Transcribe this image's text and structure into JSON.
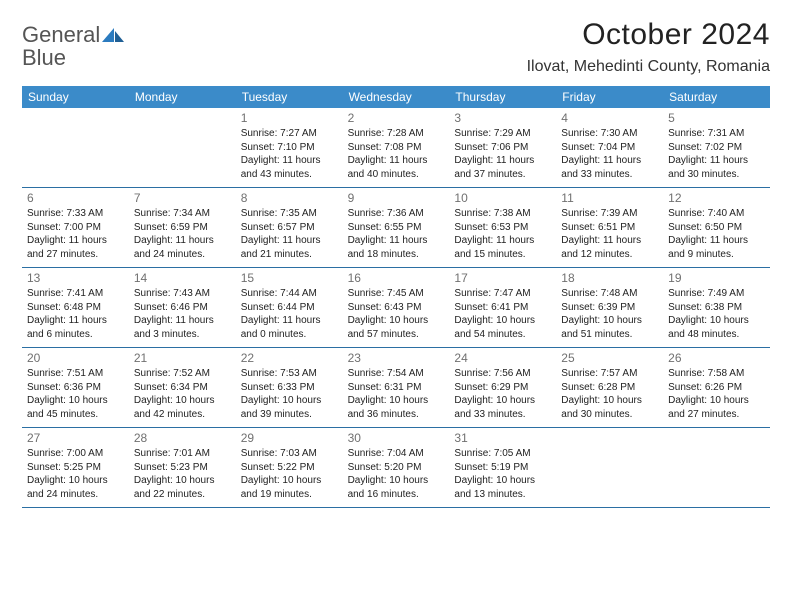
{
  "brand": {
    "word1": "General",
    "word2": "Blue"
  },
  "title": "October 2024",
  "location": "Ilovat, Mehedinti County, Romania",
  "colors": {
    "header_bg": "#3b8bc9",
    "header_text": "#ffffff",
    "row_border": "#2b6fa3",
    "daynum": "#707070",
    "body_text": "#222222",
    "logo_gray": "#555555",
    "logo_blue": "#2b7bbf"
  },
  "dayNames": [
    "Sunday",
    "Monday",
    "Tuesday",
    "Wednesday",
    "Thursday",
    "Friday",
    "Saturday"
  ],
  "weeks": [
    [
      null,
      null,
      {
        "n": "1",
        "sr": "7:27 AM",
        "ss": "7:10 PM",
        "dh": "11",
        "dm": "43"
      },
      {
        "n": "2",
        "sr": "7:28 AM",
        "ss": "7:08 PM",
        "dh": "11",
        "dm": "40"
      },
      {
        "n": "3",
        "sr": "7:29 AM",
        "ss": "7:06 PM",
        "dh": "11",
        "dm": "37"
      },
      {
        "n": "4",
        "sr": "7:30 AM",
        "ss": "7:04 PM",
        "dh": "11",
        "dm": "33"
      },
      {
        "n": "5",
        "sr": "7:31 AM",
        "ss": "7:02 PM",
        "dh": "11",
        "dm": "30"
      }
    ],
    [
      {
        "n": "6",
        "sr": "7:33 AM",
        "ss": "7:00 PM",
        "dh": "11",
        "dm": "27"
      },
      {
        "n": "7",
        "sr": "7:34 AM",
        "ss": "6:59 PM",
        "dh": "11",
        "dm": "24"
      },
      {
        "n": "8",
        "sr": "7:35 AM",
        "ss": "6:57 PM",
        "dh": "11",
        "dm": "21"
      },
      {
        "n": "9",
        "sr": "7:36 AM",
        "ss": "6:55 PM",
        "dh": "11",
        "dm": "18"
      },
      {
        "n": "10",
        "sr": "7:38 AM",
        "ss": "6:53 PM",
        "dh": "11",
        "dm": "15"
      },
      {
        "n": "11",
        "sr": "7:39 AM",
        "ss": "6:51 PM",
        "dh": "11",
        "dm": "12"
      },
      {
        "n": "12",
        "sr": "7:40 AM",
        "ss": "6:50 PM",
        "dh": "11",
        "dm": "9"
      }
    ],
    [
      {
        "n": "13",
        "sr": "7:41 AM",
        "ss": "6:48 PM",
        "dh": "11",
        "dm": "6"
      },
      {
        "n": "14",
        "sr": "7:43 AM",
        "ss": "6:46 PM",
        "dh": "11",
        "dm": "3"
      },
      {
        "n": "15",
        "sr": "7:44 AM",
        "ss": "6:44 PM",
        "dh": "11",
        "dm": "0"
      },
      {
        "n": "16",
        "sr": "7:45 AM",
        "ss": "6:43 PM",
        "dh": "10",
        "dm": "57"
      },
      {
        "n": "17",
        "sr": "7:47 AM",
        "ss": "6:41 PM",
        "dh": "10",
        "dm": "54"
      },
      {
        "n": "18",
        "sr": "7:48 AM",
        "ss": "6:39 PM",
        "dh": "10",
        "dm": "51"
      },
      {
        "n": "19",
        "sr": "7:49 AM",
        "ss": "6:38 PM",
        "dh": "10",
        "dm": "48"
      }
    ],
    [
      {
        "n": "20",
        "sr": "7:51 AM",
        "ss": "6:36 PM",
        "dh": "10",
        "dm": "45"
      },
      {
        "n": "21",
        "sr": "7:52 AM",
        "ss": "6:34 PM",
        "dh": "10",
        "dm": "42"
      },
      {
        "n": "22",
        "sr": "7:53 AM",
        "ss": "6:33 PM",
        "dh": "10",
        "dm": "39"
      },
      {
        "n": "23",
        "sr": "7:54 AM",
        "ss": "6:31 PM",
        "dh": "10",
        "dm": "36"
      },
      {
        "n": "24",
        "sr": "7:56 AM",
        "ss": "6:29 PM",
        "dh": "10",
        "dm": "33"
      },
      {
        "n": "25",
        "sr": "7:57 AM",
        "ss": "6:28 PM",
        "dh": "10",
        "dm": "30"
      },
      {
        "n": "26",
        "sr": "7:58 AM",
        "ss": "6:26 PM",
        "dh": "10",
        "dm": "27"
      }
    ],
    [
      {
        "n": "27",
        "sr": "7:00 AM",
        "ss": "5:25 PM",
        "dh": "10",
        "dm": "24"
      },
      {
        "n": "28",
        "sr": "7:01 AM",
        "ss": "5:23 PM",
        "dh": "10",
        "dm": "22"
      },
      {
        "n": "29",
        "sr": "7:03 AM",
        "ss": "5:22 PM",
        "dh": "10",
        "dm": "19"
      },
      {
        "n": "30",
        "sr": "7:04 AM",
        "ss": "5:20 PM",
        "dh": "10",
        "dm": "16"
      },
      {
        "n": "31",
        "sr": "7:05 AM",
        "ss": "5:19 PM",
        "dh": "10",
        "dm": "13"
      },
      null,
      null
    ]
  ]
}
